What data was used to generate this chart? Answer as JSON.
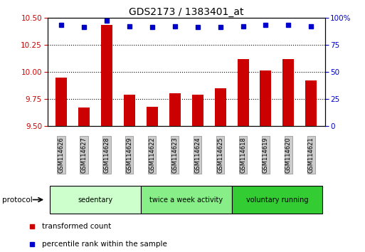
{
  "title": "GDS2173 / 1383401_at",
  "samples": [
    "GSM114626",
    "GSM114627",
    "GSM114628",
    "GSM114629",
    "GSM114622",
    "GSM114623",
    "GSM114624",
    "GSM114625",
    "GSM114618",
    "GSM114619",
    "GSM114620",
    "GSM114621"
  ],
  "transformed_counts": [
    9.95,
    9.67,
    10.43,
    9.79,
    9.68,
    9.8,
    9.79,
    9.85,
    10.12,
    10.01,
    10.12,
    9.92
  ],
  "percentile_ranks": [
    93,
    91,
    97,
    92,
    91,
    92,
    91,
    91,
    92,
    93,
    93,
    92
  ],
  "ylim_left": [
    9.5,
    10.5
  ],
  "ylim_right": [
    0,
    100
  ],
  "yticks_left": [
    9.5,
    9.75,
    10.0,
    10.25,
    10.5
  ],
  "yticks_right": [
    0,
    25,
    50,
    75,
    100
  ],
  "bar_color": "#cc0000",
  "dot_color": "#0000cc",
  "groups": [
    {
      "label": "sedentary",
      "indices": [
        0,
        1,
        2,
        3
      ],
      "color": "#ccffcc"
    },
    {
      "label": "twice a week activity",
      "indices": [
        4,
        5,
        6,
        7
      ],
      "color": "#88ee88"
    },
    {
      "label": "voluntary running",
      "indices": [
        8,
        9,
        10,
        11
      ],
      "color": "#33cc33"
    }
  ],
  "bar_width": 0.5,
  "baseline": 9.5,
  "legend_red_label": "transformed count",
  "legend_blue_label": "percentile rank within the sample",
  "protocol_label": "protocol",
  "sample_box_color": "#cccccc",
  "fig_bg": "#ffffff"
}
